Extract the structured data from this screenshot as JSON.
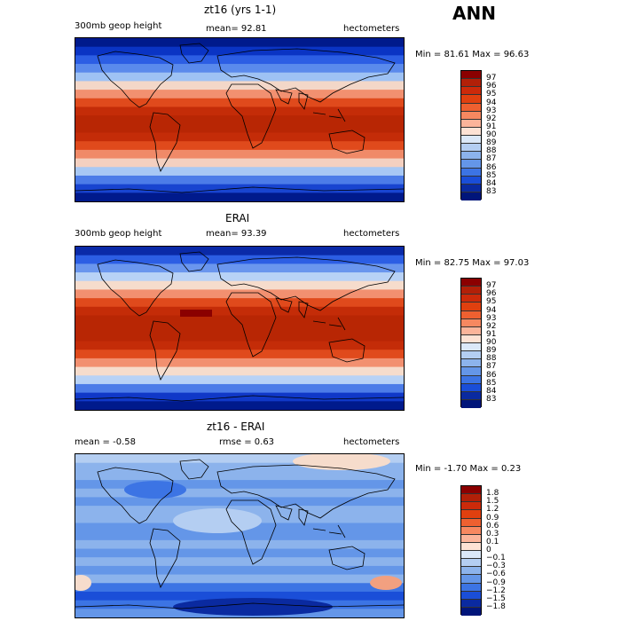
{
  "season": "ANN",
  "panels": [
    {
      "title": "zt16 (yrs 1-1)",
      "left_text": "300mb geop height",
      "center_text": "mean=  92.81",
      "right_text": "hectometers",
      "minmax": "Min =  81.61 Max =  96.63",
      "colorbar": {
        "labels": [
          "97",
          "96",
          "95",
          "94",
          "93",
          "92",
          "91",
          "90",
          "89",
          "88",
          "87",
          "86",
          "85",
          "84",
          "83"
        ],
        "colors": [
          "#8b0000",
          "#b22008",
          "#cc2a0a",
          "#e0400f",
          "#ee6030",
          "#f78860",
          "#fbb49a",
          "#fde2d4",
          "#dbe8f8",
          "#b4cef2",
          "#8cb3ec",
          "#6496e8",
          "#3c74e4",
          "#1a4ed8",
          "#0a2aa0",
          "#00157a"
        ]
      },
      "bands": [
        "#001a8c",
        "#0a34c4",
        "#2c5ee4",
        "#5a8aec",
        "#9ec2f4",
        "#f3d7c8",
        "#f29070",
        "#e04a1c",
        "#c42c08",
        "#b82604",
        "#b82604",
        "#c42c08",
        "#e04a1c",
        "#f08a68",
        "#f4d0c0",
        "#a8c8f4",
        "#4c7ce8",
        "#1844d0",
        "#001a8c"
      ]
    },
    {
      "title": "ERAI",
      "left_text": "300mb geop height",
      "center_text": "mean=  93.39",
      "right_text": "hectometers",
      "minmax": "Min =  82.75 Max =  97.03",
      "colorbar": {
        "labels": [
          "97",
          "96",
          "95",
          "94",
          "93",
          "92",
          "91",
          "90",
          "89",
          "88",
          "87",
          "86",
          "85",
          "84",
          "83"
        ],
        "colors": [
          "#8b0000",
          "#b22008",
          "#cc2a0a",
          "#e0400f",
          "#ee6030",
          "#f78860",
          "#fbb49a",
          "#fde2d4",
          "#dbe8f8",
          "#b4cef2",
          "#8cb3ec",
          "#6496e8",
          "#3c74e4",
          "#1a4ed8",
          "#0a2aa0",
          "#00157a"
        ]
      },
      "bands": [
        "#0a2aa8",
        "#2c5ee4",
        "#6a96ee",
        "#b8d2f6",
        "#f6dccc",
        "#f29070",
        "#e04a1c",
        "#c42c08",
        "#b82604",
        "#b82604",
        "#b82604",
        "#c42c08",
        "#e04a1c",
        "#f29070",
        "#f6dccc",
        "#b8d2f6",
        "#4c7ce8",
        "#1038c8",
        "#001a8c"
      ]
    },
    {
      "title": "zt16 - ERAI",
      "left_text": "mean =  -0.58",
      "center_text": "rmse =   0.63",
      "right_text": "hectometers",
      "minmax": "Min = -1.70 Max =   0.23",
      "colorbar": {
        "labels": [
          "1.8",
          "1.5",
          "1.2",
          "0.9",
          "0.6",
          "0.3",
          "0.1",
          "0",
          "−0.1",
          "−0.3",
          "−0.6",
          "−0.9",
          "−1.2",
          "−1.5",
          "−1.8"
        ],
        "colors": [
          "#8b0000",
          "#b22008",
          "#cc2a0a",
          "#e0400f",
          "#ee6030",
          "#f78860",
          "#fbb49a",
          "#fde2d4",
          "#dbe8f8",
          "#b4cef2",
          "#8cb3ec",
          "#6496e8",
          "#3c74e4",
          "#1a4ed8",
          "#0a2aa0",
          "#00157a"
        ]
      },
      "bands": [
        "#b4cef2",
        "#8cb3ec",
        "#8cb3ec",
        "#6496e8",
        "#8cb3ec",
        "#6496e8",
        "#8cb3ec",
        "#8cb3ec",
        "#6496e8",
        "#6496e8",
        "#8cb3ec",
        "#6496e8",
        "#8cb3ec",
        "#6496e8",
        "#8cb3ec",
        "#3c74e4",
        "#1a4ed8",
        "#3c74e4",
        "#6496e8"
      ]
    }
  ],
  "colors": {
    "coastline": "#000000",
    "warm_anomaly": "#f2a080",
    "pale_anomaly": "#f6dccc"
  }
}
